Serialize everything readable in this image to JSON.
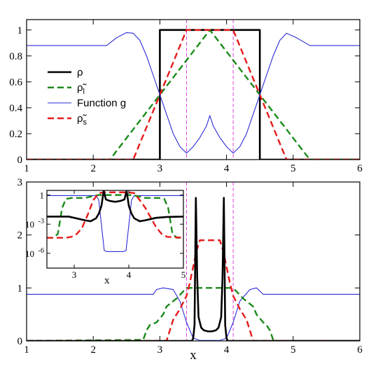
{
  "colors": {
    "rho": "#000000",
    "rho_l": "#1a8a1a",
    "g": "#2b2bd6",
    "rho_s": "#e61a1a",
    "vline": "#e040e0"
  },
  "chart_data": [
    {
      "id": "top",
      "type": "line",
      "xlim": [
        1,
        6
      ],
      "ylim": [
        0,
        1.08
      ],
      "xticks": [
        1,
        2,
        3,
        4,
        5,
        6
      ],
      "xtick_labels": [
        "1",
        "2",
        "3",
        "4",
        "5",
        "6"
      ],
      "yticks": [
        0,
        0.2,
        0.4,
        0.6,
        0.8,
        1
      ],
      "ytick_labels": [
        "0",
        "0.2",
        "0.4",
        "0.6",
        "0.8",
        "1"
      ],
      "vlines": [
        3.4,
        4.1
      ],
      "legend": {
        "position": "left-middle",
        "entries": [
          {
            "key": "rho",
            "label": "ρ",
            "sub": ""
          },
          {
            "key": "rho_l",
            "label": "ρ̃",
            "sub": "l"
          },
          {
            "key": "g",
            "label": "Function g",
            "sub": ""
          },
          {
            "key": "rho_s",
            "label": "ρ̃",
            "sub": "s"
          }
        ]
      },
      "series": [
        {
          "key": "rho",
          "x": [
            1,
            3.0,
            3.0,
            4.5,
            4.5,
            6
          ],
          "y": [
            0,
            0,
            1,
            1,
            0,
            0
          ]
        },
        {
          "key": "rho_l",
          "x": [
            1,
            2.25,
            3.75,
            5.25,
            6
          ],
          "y": [
            0,
            0,
            1,
            0,
            0
          ]
        },
        {
          "key": "rho_s",
          "x": [
            1,
            2.6,
            3.4,
            4.1,
            4.9,
            6
          ],
          "y": [
            0,
            0,
            1,
            1,
            0,
            0
          ]
        },
        {
          "key": "g",
          "x": [
            1,
            2.2,
            2.35,
            2.5,
            2.6,
            2.7,
            2.8,
            2.9,
            3.0,
            3.1,
            3.2,
            3.3,
            3.4,
            3.5,
            3.6,
            3.7,
            3.75,
            3.8,
            3.9,
            4.0,
            4.1,
            4.2,
            4.3,
            4.4,
            4.5,
            4.6,
            4.7,
            4.8,
            4.9,
            5.05,
            5.25,
            5.3,
            6
          ],
          "y": [
            0.88,
            0.88,
            0.94,
            0.98,
            0.975,
            0.92,
            0.8,
            0.65,
            0.5,
            0.35,
            0.2,
            0.1,
            0.05,
            0.1,
            0.17,
            0.26,
            0.34,
            0.26,
            0.17,
            0.1,
            0.05,
            0.1,
            0.2,
            0.35,
            0.5,
            0.65,
            0.8,
            0.92,
            0.975,
            0.94,
            0.88,
            0.88,
            0.88
          ]
        }
      ]
    },
    {
      "id": "bottom",
      "type": "line",
      "xlim": [
        1,
        6
      ],
      "ylim": [
        0,
        3
      ],
      "xticks": [
        1,
        2,
        3,
        4,
        5,
        6
      ],
      "xtick_labels": [
        "1",
        "2",
        "3",
        "4",
        "5",
        "6"
      ],
      "yticks": [
        0,
        1,
        2,
        3
      ],
      "ytick_labels": [
        "0",
        "1",
        "2",
        "3"
      ],
      "xlabel": "x",
      "vlines": [
        3.4,
        4.1
      ],
      "series": [
        {
          "key": "g",
          "x": [
            1,
            2.9,
            2.95,
            3.05,
            3.2,
            3.3,
            3.4,
            3.5,
            3.6,
            3.7,
            3.8,
            3.9,
            4.0,
            4.1,
            4.2,
            4.35,
            4.45,
            4.55,
            6
          ],
          "y": [
            0.88,
            0.88,
            0.97,
            1.0,
            0.97,
            0.75,
            0.35,
            0.05,
            0.01,
            0.01,
            0.01,
            0.01,
            0.05,
            0.35,
            0.75,
            0.97,
            1.0,
            0.88,
            0.88
          ]
        },
        {
          "key": "rho_l",
          "x": [
            1,
            2.75,
            2.8,
            2.85,
            2.95,
            3.05,
            3.1,
            3.15,
            3.25,
            3.4,
            3.6,
            3.9,
            4.1,
            4.25,
            4.35,
            4.4,
            4.45,
            4.55,
            4.6,
            4.65,
            4.7,
            4.75,
            6
          ],
          "y": [
            0,
            0.02,
            0.2,
            0.3,
            0.35,
            0.5,
            0.65,
            0.7,
            0.8,
            1.0,
            1.0,
            1.0,
            1.0,
            0.8,
            0.7,
            0.65,
            0.5,
            0.35,
            0.3,
            0.2,
            0.02,
            0,
            0
          ]
        },
        {
          "key": "rho_s",
          "x": [
            1,
            3.1,
            3.15,
            3.2,
            3.3,
            3.4,
            3.45,
            3.5,
            3.55,
            3.6,
            3.9,
            3.95,
            4.0,
            4.05,
            4.1,
            4.2,
            4.3,
            4.35,
            4.4,
            6
          ],
          "y": [
            0,
            0,
            0.2,
            0.4,
            0.6,
            0.85,
            1.1,
            1.4,
            1.7,
            1.9,
            1.9,
            1.7,
            1.4,
            1.1,
            0.85,
            0.6,
            0.4,
            0.2,
            0,
            0
          ]
        },
        {
          "key": "rho",
          "x": [
            1,
            3.48,
            3.5,
            3.52,
            3.54,
            3.56,
            3.58,
            3.62,
            3.66,
            3.72,
            3.75,
            3.78,
            3.84,
            3.88,
            3.92,
            3.94,
            3.96,
            3.98,
            4.0,
            4.02,
            6
          ],
          "y": [
            0,
            0,
            0.05,
            0.3,
            2.7,
            1.2,
            0.45,
            0.25,
            0.2,
            0.18,
            0.18,
            0.18,
            0.2,
            0.25,
            0.45,
            1.2,
            2.7,
            0.3,
            0.05,
            0,
            0
          ]
        }
      ]
    },
    {
      "id": "inset",
      "type": "line",
      "yscale": "log",
      "xlim": [
        2.5,
        5
      ],
      "ylim": [
        3e-08,
        3
      ],
      "xticks": [
        3,
        4,
        5
      ],
      "xtick_labels": [
        "3",
        "4",
        "5"
      ],
      "yticks": [
        1,
        0.001,
        1e-06
      ],
      "ytick_labels": [
        "1",
        "10",
        "10"
      ],
      "ytick_exps": [
        "",
        "-3",
        "-6"
      ],
      "xlabel": "x",
      "series": [
        {
          "key": "g",
          "x": [
            2.5,
            3.4,
            3.45,
            3.55,
            3.6,
            3.9,
            3.95,
            4.05,
            4.1,
            5
          ],
          "y": [
            0.88,
            0.88,
            0.3,
            2e-06,
            1.5e-06,
            1.5e-06,
            2e-06,
            0.3,
            0.88,
            0.88
          ]
        },
        {
          "key": "rho_l",
          "x": [
            2.5,
            2.62,
            2.7,
            2.78,
            2.85,
            2.95,
            3.2,
            3.35,
            3.45,
            4.05,
            4.15,
            4.3,
            4.55,
            4.65,
            4.72,
            4.8,
            4.88,
            5
          ],
          "y": [
            4e-05,
            4e-05,
            0.0001,
            0.05,
            0.4,
            0.5,
            0.5,
            0.8,
            1,
            1,
            0.8,
            0.5,
            0.5,
            0.4,
            0.05,
            0.0001,
            4e-05,
            4e-05
          ]
        },
        {
          "key": "rho_s",
          "x": [
            2.5,
            2.85,
            2.95,
            3.05,
            3.15,
            3.25,
            3.35,
            3.45,
            3.55,
            4.0,
            4.1,
            4.2,
            4.3,
            4.4,
            4.5,
            4.6,
            4.7,
            5
          ],
          "y": [
            4e-05,
            4e-05,
            5e-05,
            0.0001,
            0.0005,
            0.01,
            0.3,
            1.6,
            1.9,
            1.9,
            1.6,
            0.3,
            0.05,
            0.005,
            0.0005,
            0.0001,
            5e-05,
            4e-05
          ]
        },
        {
          "key": "rho",
          "x": [
            2.5,
            2.9,
            3.0,
            3.2,
            3.3,
            3.4,
            3.45,
            3.5,
            3.54,
            3.58,
            3.65,
            3.75,
            3.85,
            3.92,
            3.96,
            4.0,
            4.05,
            4.1,
            4.2,
            4.3,
            4.5,
            4.7,
            5
          ],
          "y": [
            0.006,
            0.006,
            0.0045,
            0.0025,
            0.002,
            0.004,
            0.012,
            0.08,
            2.7,
            0.35,
            0.25,
            0.2,
            0.25,
            0.35,
            2.7,
            0.08,
            0.012,
            0.004,
            0.002,
            0.0025,
            0.0045,
            0.0055,
            0.006
          ]
        }
      ]
    }
  ]
}
